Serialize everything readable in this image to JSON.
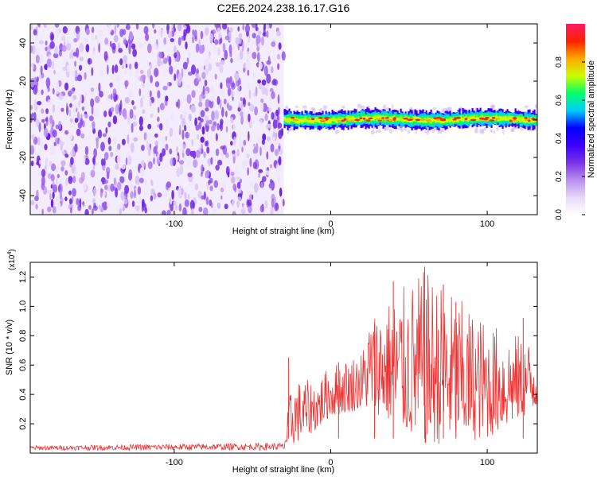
{
  "title": "C2E6.2024.238.16.17.G16",
  "colors": {
    "snr_line": "#ee3333",
    "background_noise": "#7a33e6",
    "colormap": [
      "#ffffff",
      "#e8d8f8",
      "#b88ef0",
      "#7a33e6",
      "#3b00ff",
      "#0000ff",
      "#00ccff",
      "#00ff66",
      "#ccff00",
      "#ffaa00",
      "#ff2200",
      "#ff1a66"
    ]
  },
  "chart_data": [
    {
      "type": "heatmap",
      "xlabel": "Height of straight line (km)",
      "ylabel": "Frequency (Hz)",
      "xlim": [
        -192,
        132
      ],
      "ylim": [
        -50,
        50
      ],
      "x_ticks": [
        -100,
        0,
        100
      ],
      "y_ticks": [
        -40,
        -20,
        0,
        20,
        40
      ],
      "noise_region_x": [
        -192,
        -30
      ],
      "signal_region_x": [
        -30,
        132
      ],
      "signal_band_hz": [
        -5,
        5
      ],
      "colorbar": {
        "label": "Normalized spectral amplitude",
        "range": [
          0,
          1
        ],
        "ticks": [
          "0.0",
          "0.2",
          "0.4",
          "0.6",
          "0.8"
        ]
      }
    },
    {
      "type": "line",
      "xlabel": "Height of straight line (km)",
      "ylabel": "SNR (10 * v/v)",
      "y_scale_note": "(x10",
      "y_scale_exp": "4",
      "y_scale_close": ")",
      "xlim": [
        -192,
        132
      ],
      "ylim": [
        0,
        1.3
      ],
      "x_ticks": [
        -100,
        0,
        100
      ],
      "y_ticks": [
        "0.2",
        "0.4",
        "0.6",
        "0.8",
        "1.0",
        "1.2"
      ],
      "series": [
        {
          "envelope": [
            {
              "x": -192,
              "low": 0.02,
              "high": 0.05
            },
            {
              "x": -120,
              "low": 0.02,
              "high": 0.06
            },
            {
              "x": -30,
              "low": 0.02,
              "high": 0.07
            },
            {
              "x": -25,
              "low": 0.05,
              "high": 0.5
            },
            {
              "x": -10,
              "low": 0.15,
              "high": 0.5
            },
            {
              "x": 0,
              "low": 0.25,
              "high": 0.6
            },
            {
              "x": 20,
              "low": 0.3,
              "high": 0.7
            },
            {
              "x": 25,
              "low": 0.3,
              "high": 0.95
            },
            {
              "x": 60,
              "low": 0.05,
              "high": 1.25
            },
            {
              "x": 100,
              "low": 0.1,
              "high": 0.9
            },
            {
              "x": 132,
              "low": 0.3,
              "high": 0.75
            }
          ],
          "peaks": [
            {
              "x": -27,
              "y": 0.65
            },
            {
              "x": 5,
              "y": 0.62
            },
            {
              "x": 28,
              "y": 0.88
            },
            {
              "x": 40,
              "y": 1.17
            },
            {
              "x": 60,
              "y": 1.27
            },
            {
              "x": 72,
              "y": 1.15
            },
            {
              "x": 80,
              "y": 1.03
            },
            {
              "x": 123,
              "y": 0.92
            }
          ]
        }
      ]
    }
  ]
}
